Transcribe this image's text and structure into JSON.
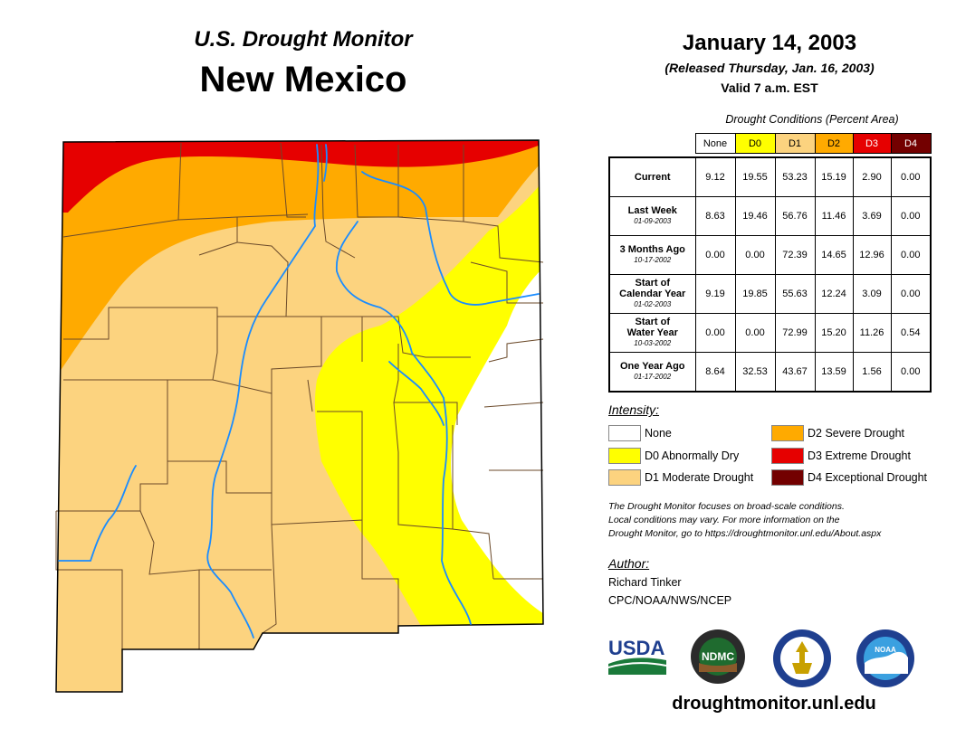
{
  "header": {
    "product": "U.S. Drought Monitor",
    "state": "New Mexico",
    "date": "January 14, 2003",
    "released": "(Released Thursday, Jan. 16, 2003)",
    "valid": "Valid 7 a.m. EST"
  },
  "table": {
    "caption": "Drought Conditions (Percent Area)",
    "columns": [
      "None",
      "D0",
      "D1",
      "D2",
      "D3",
      "D4"
    ],
    "column_colors": [
      "#ffffff",
      "#ffff00",
      "#fcd37f",
      "#ffaa00",
      "#e60000",
      "#730000"
    ],
    "rows": [
      {
        "label": "Current",
        "label2": "",
        "date": "",
        "values": [
          "9.12",
          "19.55",
          "53.23",
          "15.19",
          "2.90",
          "0.00"
        ]
      },
      {
        "label": "Last Week",
        "label2": "",
        "date": "01-09-2003",
        "values": [
          "8.63",
          "19.46",
          "56.76",
          "11.46",
          "3.69",
          "0.00"
        ]
      },
      {
        "label": "3 Months Ago",
        "label2": "",
        "date": "10-17-2002",
        "values": [
          "0.00",
          "0.00",
          "72.39",
          "14.65",
          "12.96",
          "0.00"
        ]
      },
      {
        "label": "Start of",
        "label2": "Calendar Year",
        "date": "01-02-2003",
        "values": [
          "9.19",
          "19.85",
          "55.63",
          "12.24",
          "3.09",
          "0.00"
        ]
      },
      {
        "label": "Start of",
        "label2": "Water Year",
        "date": "10-03-2002",
        "values": [
          "0.00",
          "0.00",
          "72.99",
          "15.20",
          "11.26",
          "0.54"
        ]
      },
      {
        "label": "One Year Ago",
        "label2": "",
        "date": "01-17-2002",
        "values": [
          "8.64",
          "32.53",
          "43.67",
          "13.59",
          "1.56",
          "0.00"
        ]
      }
    ]
  },
  "legend": {
    "title": "Intensity:",
    "items": [
      {
        "label": "None",
        "color": "#ffffff"
      },
      {
        "label": "D0 Abnormally Dry",
        "color": "#ffff00"
      },
      {
        "label": "D1 Moderate Drought",
        "color": "#fcd37f"
      },
      {
        "label": "D2 Severe Drought",
        "color": "#ffaa00"
      },
      {
        "label": "D3 Extreme Drought",
        "color": "#e60000"
      },
      {
        "label": "D4 Exceptional Drought",
        "color": "#730000"
      }
    ]
  },
  "note": {
    "line1": "The Drought Monitor focuses on broad-scale conditions.",
    "line2": "Local conditions may vary. For more information on the",
    "line3": "Drought Monitor, go to https://droughtmonitor.unl.edu/About.aspx"
  },
  "author": {
    "heading": "Author:",
    "name": "Richard Tinker",
    "org": "CPC/NOAA/NWS/NCEP"
  },
  "logos": {
    "usda": "USDA",
    "ndmc": "NDMC",
    "noaa": "NOAA"
  },
  "website": "droughtmonitor.unl.edu",
  "colors": {
    "river": "#1a8cff",
    "county_border": "#6b4a2a"
  }
}
